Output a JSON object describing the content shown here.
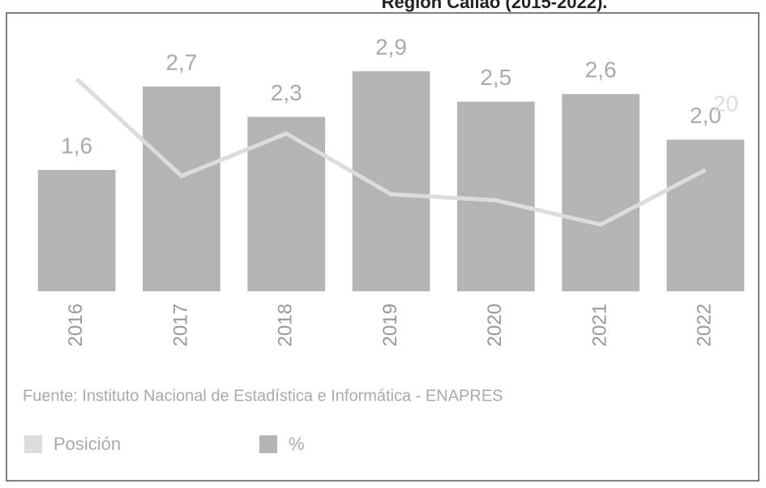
{
  "chart_data": {
    "type": "bar",
    "title": "Región Callao (2015-2022).",
    "categories": [
      "2016",
      "2017",
      "2018",
      "2019",
      "2020",
      "2021",
      "2022"
    ],
    "series": [
      {
        "name": "%",
        "type": "bar",
        "color": "#b4b4b4",
        "values": [
          1.6,
          2.7,
          2.3,
          2.9,
          2.5,
          2.6,
          2.0
        ],
        "value_labels": [
          "1,6",
          "2,7",
          "2,3",
          "2,9",
          "2,5",
          "2,6",
          "2,0"
        ]
      },
      {
        "name": "Posición",
        "type": "line",
        "axis": "y2",
        "color": "#dcdcdc",
        "values": [
          35,
          19,
          26,
          16,
          15,
          11,
          20
        ],
        "value_labels": [
          null,
          null,
          null,
          null,
          null,
          null,
          "20"
        ]
      }
    ],
    "ylim": [
      0,
      3.2
    ],
    "y2lim": [
      0,
      40
    ],
    "source": "Fuente: Instituto Nacional de Estadística e Informática - ENAPRES"
  }
}
